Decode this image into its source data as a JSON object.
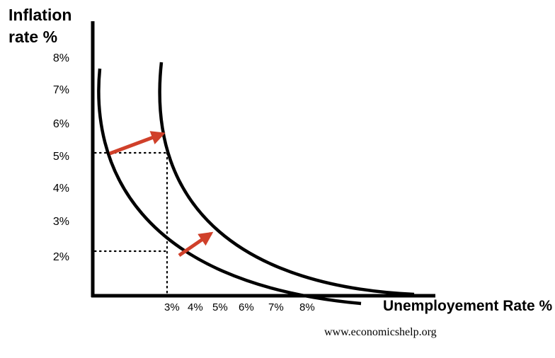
{
  "y_axis_title": "Inflation rate %",
  "y_ticks": [
    "8%",
    "7%",
    "6%",
    "5%",
    "4%",
    "3%",
    "2%"
  ],
  "x_axis_title": "Unemployement Rate %",
  "x_ticks": [
    "3%",
    "4%",
    "5%",
    "6%",
    "7%",
    "8%"
  ],
  "source": "www.economicshelp.org",
  "colors": {
    "curve": "#000000",
    "arrow": "#d0402a",
    "guide": "#000000"
  },
  "diagram": {
    "curves": [
      "original Phillips curve",
      "shifted Phillips curve (outward)"
    ],
    "guides": [
      {
        "inflation": "5%",
        "unemployment": "3%"
      },
      {
        "inflation": "2%",
        "unemployment": "3%"
      }
    ],
    "arrows": [
      "shift-outward-upper",
      "shift-outward-lower"
    ]
  }
}
